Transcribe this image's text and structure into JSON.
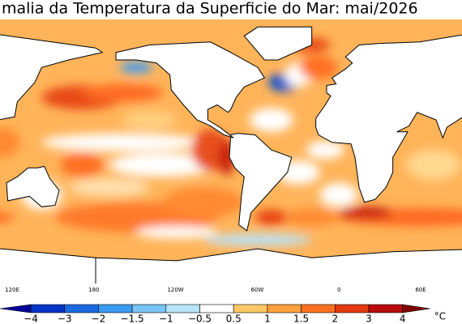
{
  "title": "malia da Temperatura da Superficie do Mar: mai/2026",
  "longitude_labels": [
    "120E",
    "180",
    "120W",
    "60W",
    "0",
    "60E"
  ],
  "colorbar": {
    "labels": [
      "−4",
      "−3",
      "−2",
      "−1.5",
      "−1",
      "−0.5",
      "0.5",
      "1",
      "1.5",
      "2",
      "3",
      "4"
    ],
    "unit": "°C",
    "colors": [
      "#00009a",
      "#0035c8",
      "#1a6ae0",
      "#3a9cf0",
      "#78c4f4",
      "#b8e4fa",
      "#ffffff",
      "#ffc864",
      "#ffa03c",
      "#ff7020",
      "#e43a10",
      "#b80c0c",
      "#800000"
    ]
  }
}
